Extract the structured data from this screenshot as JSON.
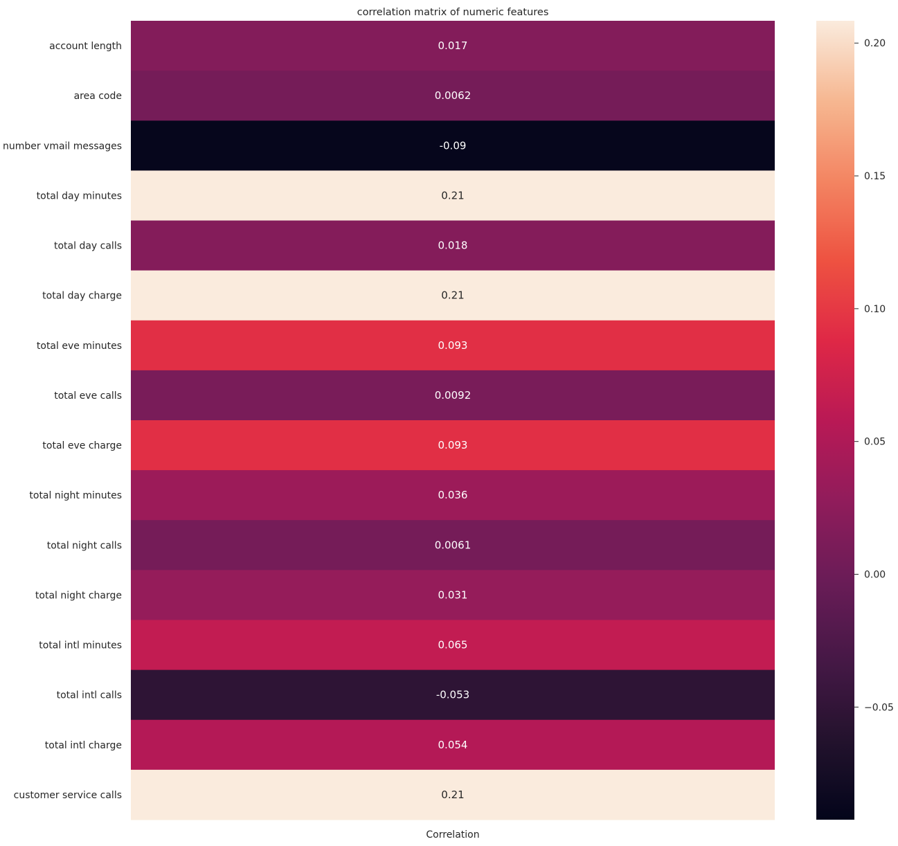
{
  "chart_data": {
    "type": "heatmap",
    "title": "correlation matrix of numeric features",
    "xlabel": "",
    "ylabel": "",
    "columns": [
      "Correlation"
    ],
    "rows": [
      {
        "label": "account length",
        "value": 0.017,
        "text": "0.017"
      },
      {
        "label": "area code",
        "value": 0.0062,
        "text": "0.0062"
      },
      {
        "label": "number vmail messages",
        "value": -0.09,
        "text": "-0.09"
      },
      {
        "label": "total day minutes",
        "value": 0.21,
        "text": "0.21"
      },
      {
        "label": "total day calls",
        "value": 0.018,
        "text": "0.018"
      },
      {
        "label": "total day charge",
        "value": 0.21,
        "text": "0.21"
      },
      {
        "label": "total eve minutes",
        "value": 0.093,
        "text": "0.093"
      },
      {
        "label": "total eve calls",
        "value": 0.0092,
        "text": "0.0092"
      },
      {
        "label": "total eve charge",
        "value": 0.093,
        "text": "0.093"
      },
      {
        "label": "total night minutes",
        "value": 0.036,
        "text": "0.036"
      },
      {
        "label": "total night calls",
        "value": 0.0061,
        "text": "0.0061"
      },
      {
        "label": "total night charge",
        "value": 0.031,
        "text": "0.031"
      },
      {
        "label": "total intl minutes",
        "value": 0.065,
        "text": "0.065"
      },
      {
        "label": "total intl calls",
        "value": -0.053,
        "text": "-0.053"
      },
      {
        "label": "total intl charge",
        "value": 0.054,
        "text": "0.054"
      },
      {
        "label": "customer service calls",
        "value": 0.21,
        "text": "0.21"
      }
    ],
    "colorbar": {
      "vmin": -0.0924,
      "vmax": 0.2084,
      "colormap": "rocket",
      "ticks": [
        {
          "value": -0.05,
          "label": "−0.05"
        },
        {
          "value": 0.0,
          "label": "0.00"
        },
        {
          "value": 0.05,
          "label": "0.05"
        },
        {
          "value": 0.1,
          "label": "0.10"
        },
        {
          "value": 0.15,
          "label": "0.15"
        },
        {
          "value": 0.2,
          "label": "0.20"
        }
      ]
    },
    "grid": false,
    "legend": "colorbar-right"
  }
}
